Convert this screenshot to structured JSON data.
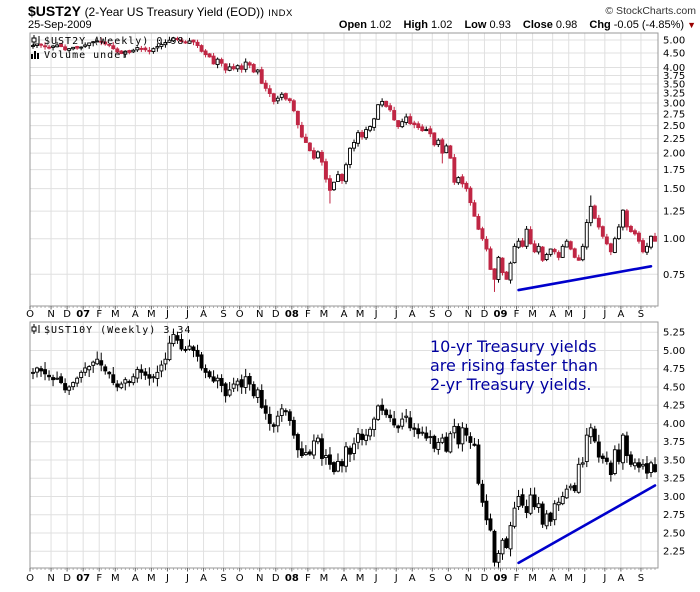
{
  "header": {
    "symbol": "$UST2Y",
    "name": "(2-Year US Treasury Yield (EOD))",
    "exchange": "INDX",
    "copyright": "© StockCharts.com",
    "date": "25-Sep-2009",
    "quote": {
      "open_label": "Open",
      "open": "1.02",
      "high_label": "High",
      "high": "1.02",
      "low_label": "Low",
      "low": "0.93",
      "close_label": "Close",
      "close": "0.98",
      "chg_label": "Chg",
      "chg": "-0.05 (-4.85%)"
    }
  },
  "colors": {
    "up": "#000000",
    "down": "#C02644",
    "trendline": "#0000CC",
    "annotation": "#0000A0",
    "grid": "#E0E0E0",
    "border": "#999999",
    "triangle": "#990000"
  },
  "annotation": {
    "lines": [
      "10-yr Treasury yields",
      "are rising faster than",
      "2-yr Treasury yields."
    ]
  },
  "chart_data": [
    {
      "type": "candlestick",
      "symbol": "$UST2Y",
      "period": "Weekly",
      "last": "0.98",
      "legend": "$UST2Y (Weekly) 0.98",
      "volume_label": "Volume undef",
      "scale": "log",
      "ylim": [
        0.58,
        5.29
      ],
      "yticks": [
        5.0,
        4.5,
        4.0,
        3.75,
        3.5,
        3.25,
        3.0,
        2.75,
        2.5,
        2.25,
        2.0,
        1.75,
        1.5,
        1.25,
        1.0,
        0.75
      ],
      "x_labels": [
        "O",
        "N",
        "D",
        "07",
        "F",
        "M",
        "A",
        "M",
        "J",
        "J",
        "A",
        "S",
        "O",
        "N",
        "D",
        "08",
        "F",
        "M",
        "A",
        "M",
        "J",
        "J",
        "A",
        "S",
        "O",
        "N",
        "D",
        "09",
        "F",
        "M",
        "A",
        "M",
        "J",
        "J",
        "A",
        "S"
      ],
      "weeks_per_month": [
        5,
        4,
        4,
        4,
        4,
        5,
        4,
        4,
        5,
        4,
        5,
        4,
        5,
        4,
        4,
        4,
        4,
        5,
        4,
        4,
        5,
        4,
        5,
        4,
        5,
        4,
        4,
        4,
        4,
        5,
        4,
        4,
        5,
        4,
        5,
        4
      ],
      "red_down_weeks": true,
      "closes": [
        4.78,
        4.84,
        4.8,
        4.74,
        4.7,
        4.76,
        4.8,
        4.74,
        4.62,
        4.66,
        4.71,
        4.68,
        4.72,
        4.8,
        4.88,
        4.93,
        4.96,
        4.91,
        4.84,
        4.8,
        4.66,
        4.54,
        4.48,
        4.56,
        4.52,
        4.6,
        4.7,
        4.66,
        4.62,
        4.58,
        4.66,
        4.74,
        4.82,
        4.9,
        4.99,
        5.08,
        5.02,
        4.94,
        4.88,
        4.96,
        4.92,
        4.78,
        4.56,
        4.44,
        4.36,
        4.12,
        4.28,
        4.14,
        3.92,
        4.02,
        3.96,
        4.06,
        3.94,
        4.18,
        4.08,
        3.86,
        3.92,
        3.52,
        3.38,
        3.24,
        3.04,
        3.12,
        3.22,
        3.1,
        3.06,
        2.82,
        2.52,
        2.28,
        2.18,
        2.04,
        1.92,
        2.02,
        1.86,
        1.62,
        1.48,
        1.58,
        1.68,
        1.6,
        1.82,
        2.08,
        2.18,
        2.36,
        2.28,
        2.42,
        2.48,
        2.64,
        2.96,
        3.04,
        2.92,
        2.84,
        2.62,
        2.48,
        2.58,
        2.68,
        2.54,
        2.52,
        2.46,
        2.4,
        2.42,
        2.34,
        2.14,
        2.22,
        2.0,
        2.12,
        1.92,
        1.58,
        1.64,
        1.56,
        1.5,
        1.34,
        1.2,
        1.08,
        1.0,
        0.92,
        0.78,
        0.72,
        0.86,
        0.76,
        0.72,
        0.82,
        0.94,
        0.98,
        0.94,
        1.08,
        0.96,
        0.9,
        0.94,
        0.84,
        0.88,
        0.92,
        0.9,
        0.86,
        0.94,
        0.98,
        0.92,
        0.86,
        0.84,
        0.94,
        1.14,
        1.3,
        1.18,
        1.1,
        1.02,
        0.96,
        0.9,
        1.0,
        1.1,
        1.26,
        1.1,
        1.06,
        1.04,
        0.98,
        0.9,
        0.94,
        1.02,
        0.98
      ],
      "wick_overrides": {
        "74": {
          "l": 1.33
        },
        "102": {
          "l": 1.84
        },
        "115": {
          "l": 0.65
        },
        "139": {
          "h": 1.42
        }
      },
      "trendline": {
        "w1": 121,
        "v1": 0.66,
        "w2": 154,
        "v2": 0.8
      }
    },
    {
      "type": "candlestick",
      "symbol": "$UST10Y",
      "period": "Weekly",
      "last": "3.34",
      "legend": "$UST10Y (Weekly) 3.34",
      "scale": "linear",
      "ylim": [
        2.02,
        5.39
      ],
      "yticks": [
        5.25,
        5.0,
        4.75,
        4.5,
        4.25,
        4.0,
        3.75,
        3.5,
        3.25,
        3.0,
        2.75,
        2.5,
        2.25
      ],
      "x_labels": [
        "O",
        "N",
        "D",
        "07",
        "F",
        "M",
        "A",
        "M",
        "J",
        "J",
        "A",
        "S",
        "O",
        "N",
        "D",
        "08",
        "F",
        "M",
        "A",
        "M",
        "J",
        "J",
        "A",
        "S",
        "O",
        "N",
        "D",
        "09",
        "F",
        "M",
        "A",
        "M",
        "J",
        "J",
        "A",
        "S"
      ],
      "weeks_per_month": [
        5,
        4,
        4,
        4,
        4,
        5,
        4,
        4,
        5,
        4,
        5,
        4,
        5,
        4,
        4,
        4,
        4,
        5,
        4,
        4,
        5,
        4,
        5,
        4,
        5,
        4,
        4,
        4,
        4,
        5,
        4,
        4,
        5,
        4,
        5,
        4
      ],
      "red_down_weeks": false,
      "closes": [
        4.7,
        4.76,
        4.72,
        4.68,
        4.64,
        4.6,
        4.62,
        4.56,
        4.46,
        4.5,
        4.56,
        4.62,
        4.7,
        4.76,
        4.78,
        4.84,
        4.88,
        4.8,
        4.72,
        4.68,
        4.56,
        4.5,
        4.54,
        4.6,
        4.56,
        4.64,
        4.74,
        4.7,
        4.66,
        4.62,
        4.64,
        4.7,
        4.8,
        4.88,
        5.1,
        5.22,
        5.14,
        5.02,
        5.0,
        5.06,
        5.0,
        4.92,
        4.76,
        4.7,
        4.64,
        4.58,
        4.62,
        4.52,
        4.38,
        4.46,
        4.54,
        4.58,
        4.5,
        4.64,
        4.54,
        4.38,
        4.46,
        4.22,
        4.14,
        4.0,
        3.96,
        4.1,
        4.2,
        4.16,
        4.04,
        3.84,
        3.64,
        3.56,
        3.6,
        3.58,
        3.76,
        3.8,
        3.52,
        3.56,
        3.44,
        3.34,
        3.48,
        3.42,
        3.68,
        3.58,
        3.72,
        3.86,
        3.78,
        3.84,
        3.92,
        4.06,
        4.24,
        4.18,
        4.12,
        4.08,
        3.98,
        3.94,
        4.06,
        4.1,
        3.94,
        3.92,
        3.86,
        3.88,
        3.8,
        3.82,
        3.66,
        3.74,
        3.8,
        3.62,
        3.86,
        3.96,
        3.72,
        3.94,
        3.84,
        3.74,
        3.7,
        3.18,
        2.92,
        2.68,
        2.54,
        2.1,
        2.22,
        2.4,
        2.3,
        2.6,
        2.84,
        3.0,
        2.88,
        2.78,
        3.02,
        2.86,
        2.9,
        2.62,
        2.76,
        2.66,
        2.9,
        2.92,
        3.0,
        3.1,
        3.14,
        3.08,
        3.44,
        3.46,
        3.84,
        3.94,
        3.76,
        3.54,
        3.52,
        3.48,
        3.3,
        3.64,
        3.48,
        3.84,
        3.56,
        3.44,
        3.46,
        3.4,
        3.44,
        3.32,
        3.46,
        3.34
      ],
      "wick_overrides": {
        "35": {
          "h": 5.3
        },
        "115": {
          "l": 2.04
        },
        "139": {
          "h": 4.0
        }
      },
      "trendline": {
        "w1": 121,
        "v1": 2.09,
        "w2": 155,
        "v2": 3.15
      }
    }
  ]
}
